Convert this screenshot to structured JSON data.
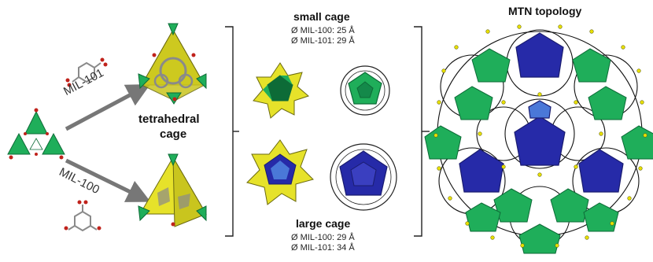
{
  "labels": {
    "mil101_arrow": "MIL-101",
    "mil100_arrow": "MIL-100",
    "tetrahedral_line1": "tetrahedral",
    "tetrahedral_line2": "cage",
    "small_cage_title": "small cage",
    "small_cage_d100": "Ø MIL-100: 25 Å",
    "small_cage_d101": "Ø MIL-101: 29 Å",
    "large_cage_title": "large cage",
    "large_cage_d100": "Ø MIL-100: 29 Å",
    "large_cage_d101": "Ø MIL-101: 34 Å",
    "mtn_title": "MTN topology"
  },
  "colors": {
    "green": "#1fae5a",
    "green_dark": "#0d6b37",
    "yellow": "#e6e22a",
    "blue": "#262aa8",
    "blue_light": "#4a78d8",
    "red": "#c0221b",
    "grey": "#8a8a8a",
    "node": "#e8e000"
  }
}
